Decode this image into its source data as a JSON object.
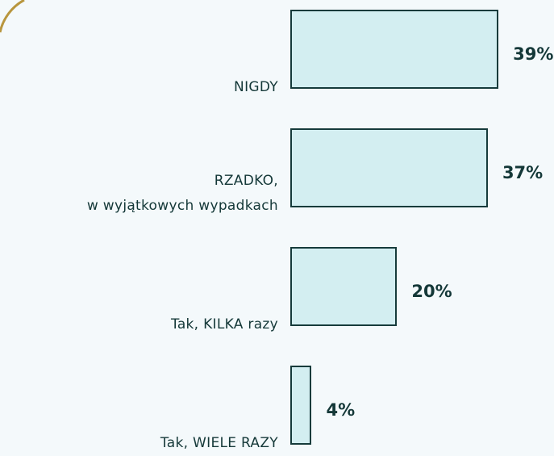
{
  "chart_data": {
    "type": "bar",
    "orientation": "horizontal",
    "categories": [
      "NIGDY",
      "RZADKO,\nw wyjątkowych wypadkach",
      "Tak, KILKA razy",
      "Tak, WIELE RAZY"
    ],
    "values": [
      39,
      37,
      20,
      4
    ],
    "value_labels": [
      "39%",
      "37%",
      "20%",
      "4%"
    ],
    "color": "#d3eef1"
  }
}
